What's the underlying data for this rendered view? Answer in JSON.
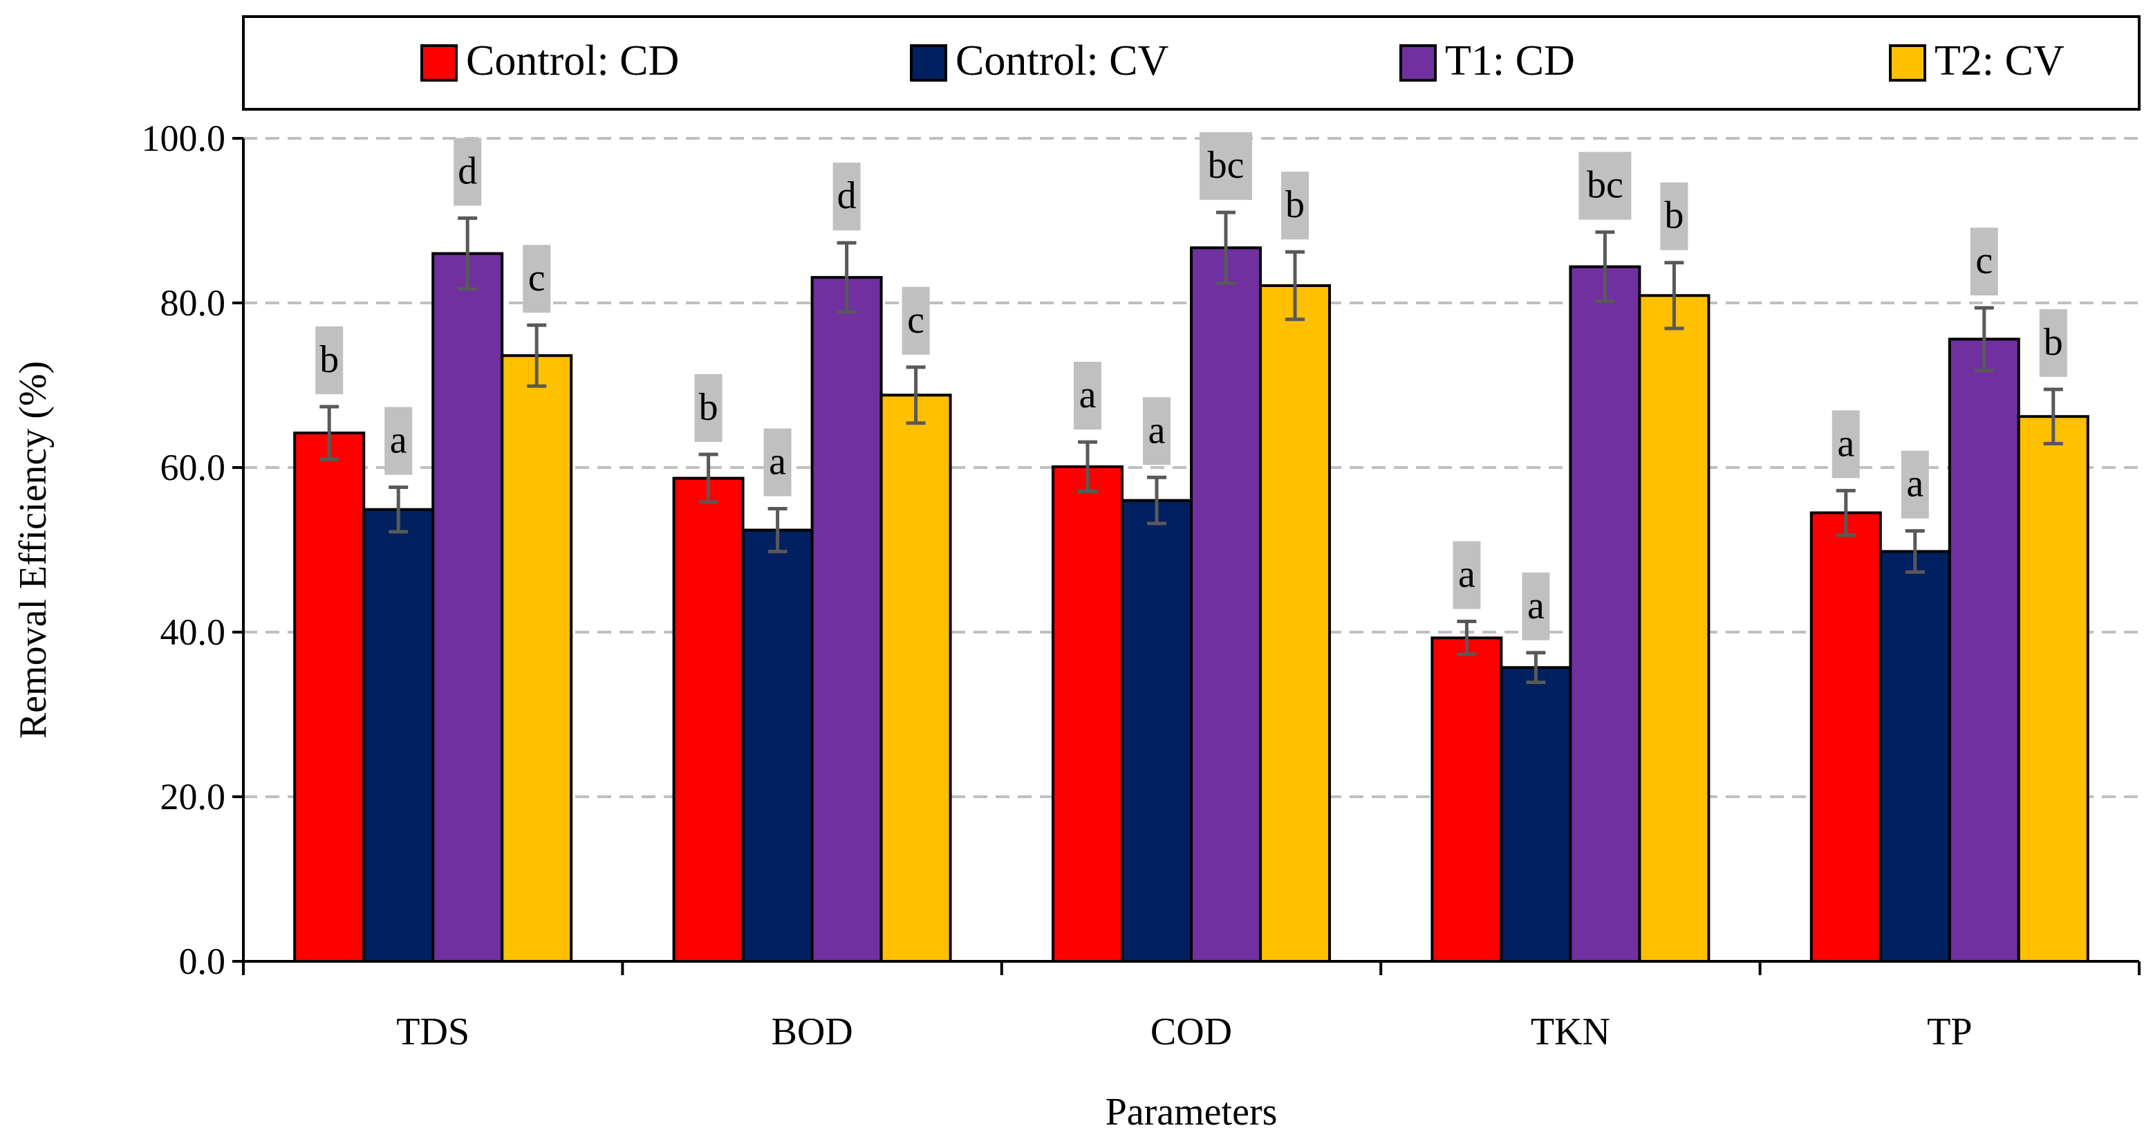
{
  "chart_data": {
    "type": "bar",
    "title": "",
    "xlabel": "Parameters",
    "ylabel": "Removal Efficiency (%)",
    "ylim": [
      0,
      100
    ],
    "yticks": [
      "0.0",
      "20.0",
      "40.0",
      "60.0",
      "80.0",
      "100.0"
    ],
    "grid": "horizontal-dashed",
    "legend_position": "top",
    "categories": [
      "TDS",
      "BOD",
      "COD",
      "TKN",
      "TP"
    ],
    "series": [
      {
        "name": "Control: CD",
        "color": "#ff0000",
        "values": [
          64.2,
          58.7,
          60.1,
          39.3,
          54.5
        ],
        "errors": [
          3.2,
          2.9,
          3.0,
          2.0,
          2.7
        ],
        "letters": [
          "b",
          "b",
          "a",
          "a",
          "a"
        ]
      },
      {
        "name": "Control: CV",
        "color": "#002060",
        "values": [
          54.9,
          52.4,
          56.0,
          35.7,
          49.8
        ],
        "errors": [
          2.7,
          2.6,
          2.8,
          1.8,
          2.5
        ],
        "letters": [
          "a",
          "a",
          "a",
          "a",
          "a"
        ]
      },
      {
        "name": "T1: CD",
        "color": "#7030a0",
        "values": [
          86.0,
          83.1,
          86.7,
          84.4,
          75.6
        ],
        "errors": [
          4.3,
          4.2,
          4.3,
          4.2,
          3.8
        ],
        "letters": [
          "d",
          "d",
          "bc",
          "bc",
          "c"
        ]
      },
      {
        "name": "T2: CV",
        "color": "#ffc000",
        "values": [
          73.6,
          68.8,
          82.1,
          80.9,
          66.2
        ],
        "errors": [
          3.7,
          3.4,
          4.1,
          4.0,
          3.3
        ],
        "letters": [
          "c",
          "c",
          "b",
          "b",
          "b"
        ]
      }
    ]
  }
}
